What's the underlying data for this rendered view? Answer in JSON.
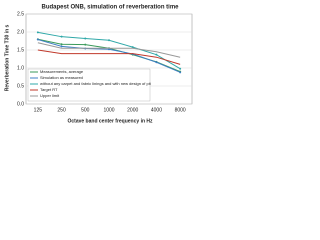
{
  "chart_data": {
    "type": "line",
    "title": "Budapest ONB, simulation of reverberation time",
    "x_label": "Octave band center frequency in Hz",
    "y_label": "Reverberation Time T30 in s",
    "categories": [
      "125",
      "250",
      "500",
      "1000",
      "2000",
      "4000",
      "8000"
    ],
    "series": [
      {
        "name": "Measurements, average",
        "color": "#3a9a5a",
        "values": [
          1.8,
          1.66,
          1.65,
          1.55,
          1.37,
          1.17,
          0.9
        ]
      },
      {
        "name": "Simulation as measured",
        "color": "#3f7fc4",
        "values": [
          1.79,
          1.6,
          1.54,
          1.52,
          1.39,
          1.16,
          0.88
        ]
      },
      {
        "name": "without any carpet and fabric linings and with new design of pit",
        "color": "#2fa8a8",
        "values": [
          1.99,
          1.87,
          1.82,
          1.77,
          1.58,
          1.37,
          0.98
        ]
      },
      {
        "name": "Target RT",
        "color": "#c0392b",
        "values": [
          1.5,
          1.4,
          1.4,
          1.4,
          1.4,
          1.3,
          1.1
        ]
      },
      {
        "name": "Upper limit",
        "color": "#999999",
        "values": [
          1.7,
          1.55,
          1.55,
          1.55,
          1.55,
          1.45,
          1.3
        ]
      }
    ],
    "ylim": [
      0,
      2.5
    ],
    "yticks": [
      {
        "value": 0,
        "label": "0.0"
      },
      {
        "value": 0.5,
        "label": "0.5"
      },
      {
        "value": 1,
        "label": "1.0"
      },
      {
        "value": 1.5,
        "label": "1.5"
      },
      {
        "value": 2,
        "label": "2.0"
      },
      {
        "value": 2.5,
        "label": "2.5"
      }
    ],
    "grid": true,
    "legend": "lower left"
  }
}
